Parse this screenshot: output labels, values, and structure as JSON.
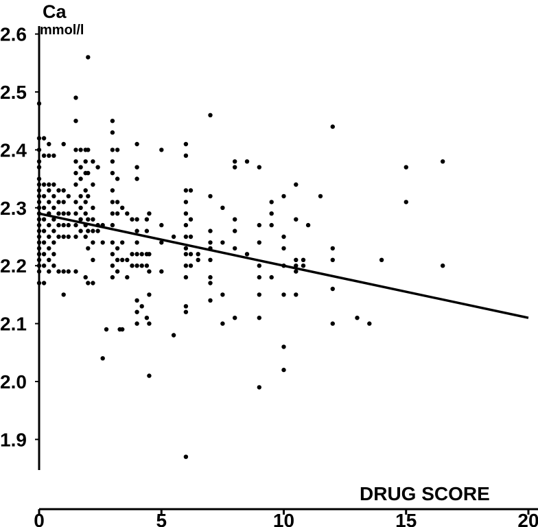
{
  "chart_data": {
    "type": "scatter",
    "title": "",
    "xlabel": "DRUG SCORE",
    "ylabel": "Ca",
    "ylabel_unit": "mmol/l",
    "xlim": [
      0,
      20
    ],
    "ylim": [
      1.86,
      2.6
    ],
    "x_ticks": [
      "0",
      "5",
      "10",
      "15",
      "20"
    ],
    "y_ticks": [
      "1.9",
      "2.0",
      "2.1",
      "2.2",
      "2.3",
      "2.4",
      "2.5",
      "2.6"
    ],
    "grid": false,
    "regression_line": {
      "x": [
        0,
        20
      ],
      "y": [
        2.29,
        2.11
      ]
    },
    "points": [
      [
        0,
        2.48
      ],
      [
        0,
        2.42
      ],
      [
        0,
        2.4
      ],
      [
        0,
        2.38
      ],
      [
        0,
        2.37
      ],
      [
        0,
        2.35
      ],
      [
        0,
        2.34
      ],
      [
        0,
        2.33
      ],
      [
        0,
        2.32
      ],
      [
        0,
        2.31
      ],
      [
        0,
        2.3
      ],
      [
        0,
        2.29
      ],
      [
        0,
        2.28
      ],
      [
        0,
        2.27
      ],
      [
        0,
        2.26
      ],
      [
        0,
        2.25
      ],
      [
        0,
        2.24
      ],
      [
        0,
        2.23
      ],
      [
        0,
        2.22
      ],
      [
        0,
        2.21
      ],
      [
        0,
        2.2
      ],
      [
        0,
        2.19
      ],
      [
        0,
        2.17
      ],
      [
        0.2,
        2.42
      ],
      [
        0.2,
        2.39
      ],
      [
        0.2,
        2.34
      ],
      [
        0.2,
        2.32
      ],
      [
        0.2,
        2.3
      ],
      [
        0.2,
        2.28
      ],
      [
        0.2,
        2.26
      ],
      [
        0.2,
        2.24
      ],
      [
        0.2,
        2.22
      ],
      [
        0.2,
        2.2
      ],
      [
        0.2,
        2.17
      ],
      [
        0.4,
        2.41
      ],
      [
        0.4,
        2.39
      ],
      [
        0.4,
        2.34
      ],
      [
        0.4,
        2.33
      ],
      [
        0.4,
        2.31
      ],
      [
        0.4,
        2.29
      ],
      [
        0.4,
        2.27
      ],
      [
        0.4,
        2.25
      ],
      [
        0.4,
        2.23
      ],
      [
        0.4,
        2.21
      ],
      [
        0.4,
        2.19
      ],
      [
        0.6,
        2.39
      ],
      [
        0.6,
        2.34
      ],
      [
        0.6,
        2.32
      ],
      [
        0.6,
        2.3
      ],
      [
        0.6,
        2.28
      ],
      [
        0.6,
        2.26
      ],
      [
        0.6,
        2.24
      ],
      [
        0.6,
        2.22
      ],
      [
        0.6,
        2.2
      ],
      [
        0.8,
        2.33
      ],
      [
        0.8,
        2.31
      ],
      [
        0.8,
        2.29
      ],
      [
        0.8,
        2.27
      ],
      [
        0.8,
        2.25
      ],
      [
        0.8,
        2.19
      ],
      [
        1.0,
        2.41
      ],
      [
        1.0,
        2.33
      ],
      [
        1.0,
        2.31
      ],
      [
        1.0,
        2.29
      ],
      [
        1.0,
        2.27
      ],
      [
        1.0,
        2.25
      ],
      [
        1.0,
        2.19
      ],
      [
        1.0,
        2.15
      ],
      [
        1.2,
        2.32
      ],
      [
        1.2,
        2.29
      ],
      [
        1.2,
        2.27
      ],
      [
        1.2,
        2.25
      ],
      [
        1.2,
        2.19
      ],
      [
        1.5,
        2.49
      ],
      [
        1.5,
        2.45
      ],
      [
        1.5,
        2.4
      ],
      [
        1.5,
        2.38
      ],
      [
        1.5,
        2.36
      ],
      [
        1.5,
        2.34
      ],
      [
        1.5,
        2.31
      ],
      [
        1.5,
        2.29
      ],
      [
        1.5,
        2.27
      ],
      [
        1.5,
        2.25
      ],
      [
        1.5,
        2.19
      ],
      [
        1.7,
        2.4
      ],
      [
        1.7,
        2.37
      ],
      [
        1.7,
        2.35
      ],
      [
        1.7,
        2.32
      ],
      [
        1.7,
        2.3
      ],
      [
        1.7,
        2.28
      ],
      [
        1.7,
        2.26
      ],
      [
        1.9,
        2.4
      ],
      [
        1.9,
        2.38
      ],
      [
        1.9,
        2.36
      ],
      [
        1.9,
        2.33
      ],
      [
        1.9,
        2.31
      ],
      [
        1.9,
        2.29
      ],
      [
        1.9,
        2.27
      ],
      [
        1.9,
        2.25
      ],
      [
        1.9,
        2.18
      ],
      [
        2.0,
        2.56
      ],
      [
        2.0,
        2.4
      ],
      [
        2.0,
        2.36
      ],
      [
        2.0,
        2.32
      ],
      [
        2.0,
        2.28
      ],
      [
        2.0,
        2.26
      ],
      [
        2.0,
        2.23
      ],
      [
        2.0,
        2.17
      ],
      [
        2.2,
        2.38
      ],
      [
        2.2,
        2.34
      ],
      [
        2.2,
        2.3
      ],
      [
        2.2,
        2.28
      ],
      [
        2.2,
        2.26
      ],
      [
        2.2,
        2.24
      ],
      [
        2.2,
        2.21
      ],
      [
        2.2,
        2.17
      ],
      [
        2.4,
        2.37
      ],
      [
        2.4,
        2.27
      ],
      [
        2.4,
        2.26
      ],
      [
        2.6,
        2.27
      ],
      [
        2.6,
        2.24
      ],
      [
        2.6,
        2.04
      ],
      [
        3.0,
        2.45
      ],
      [
        3.0,
        2.43
      ],
      [
        3.0,
        2.4
      ],
      [
        3.0,
        2.38
      ],
      [
        3.0,
        2.36
      ],
      [
        3.0,
        2.33
      ],
      [
        3.0,
        2.31
      ],
      [
        3.0,
        2.29
      ],
      [
        3.0,
        2.27
      ],
      [
        3.0,
        2.24
      ],
      [
        3.0,
        2.22
      ],
      [
        3.0,
        2.2
      ],
      [
        3.0,
        2.18
      ],
      [
        3.2,
        2.4
      ],
      [
        3.2,
        2.35
      ],
      [
        3.2,
        2.31
      ],
      [
        3.2,
        2.29
      ],
      [
        3.2,
        2.23
      ],
      [
        3.2,
        2.21
      ],
      [
        3.2,
        2.19
      ],
      [
        3.4,
        2.3
      ],
      [
        3.4,
        2.24
      ],
      [
        3.4,
        2.21
      ],
      [
        3.4,
        2.09
      ],
      [
        3.6,
        2.29
      ],
      [
        3.6,
        2.21
      ],
      [
        3.6,
        2.18
      ],
      [
        2.75,
        2.09
      ],
      [
        3.3,
        2.09
      ],
      [
        3.8,
        2.28
      ],
      [
        3.8,
        2.22
      ],
      [
        3.8,
        2.2
      ],
      [
        4.0,
        2.41
      ],
      [
        4.0,
        2.37
      ],
      [
        4.0,
        2.35
      ],
      [
        4.0,
        2.28
      ],
      [
        4.0,
        2.26
      ],
      [
        4.0,
        2.24
      ],
      [
        4.0,
        2.22
      ],
      [
        4.0,
        2.2
      ],
      [
        4.0,
        2.14
      ],
      [
        4.0,
        2.12
      ],
      [
        4.0,
        2.1
      ],
      [
        4.2,
        2.22
      ],
      [
        4.2,
        2.2
      ],
      [
        4.2,
        2.13
      ],
      [
        4.4,
        2.28
      ],
      [
        4.4,
        2.26
      ],
      [
        4.4,
        2.22
      ],
      [
        4.4,
        2.2
      ],
      [
        4.4,
        2.11
      ],
      [
        4.5,
        2.29
      ],
      [
        4.5,
        2.22
      ],
      [
        4.5,
        2.19
      ],
      [
        4.5,
        2.15
      ],
      [
        4.5,
        2.1
      ],
      [
        4.5,
        2.01
      ],
      [
        5.0,
        2.4
      ],
      [
        5.0,
        2.27
      ],
      [
        5.0,
        2.24
      ],
      [
        5.0,
        2.19
      ],
      [
        5.5,
        2.25
      ],
      [
        5.5,
        2.08
      ],
      [
        6.0,
        2.41
      ],
      [
        6.0,
        2.39
      ],
      [
        6.0,
        2.33
      ],
      [
        6.0,
        2.31
      ],
      [
        6.0,
        2.29
      ],
      [
        6.0,
        2.27
      ],
      [
        6.0,
        2.25
      ],
      [
        6.0,
        2.23
      ],
      [
        6.0,
        2.22
      ],
      [
        6.0,
        2.2
      ],
      [
        6.0,
        2.18
      ],
      [
        6.0,
        2.13
      ],
      [
        6.0,
        2.12
      ],
      [
        6.0,
        1.87
      ],
      [
        6.2,
        2.33
      ],
      [
        6.2,
        2.28
      ],
      [
        6.2,
        2.25
      ],
      [
        6.2,
        2.22
      ],
      [
        6.2,
        2.2
      ],
      [
        6.5,
        2.22
      ],
      [
        6.5,
        2.21
      ],
      [
        7.0,
        2.46
      ],
      [
        7.0,
        2.32
      ],
      [
        7.0,
        2.26
      ],
      [
        7.0,
        2.24
      ],
      [
        7.0,
        2.23
      ],
      [
        7.0,
        2.21
      ],
      [
        7.0,
        2.18
      ],
      [
        7.0,
        2.17
      ],
      [
        7.0,
        2.14
      ],
      [
        7.5,
        2.3
      ],
      [
        7.5,
        2.24
      ],
      [
        7.5,
        2.15
      ],
      [
        7.5,
        2.1
      ],
      [
        8.0,
        2.38
      ],
      [
        8.0,
        2.37
      ],
      [
        8.0,
        2.28
      ],
      [
        8.0,
        2.26
      ],
      [
        8.0,
        2.23
      ],
      [
        8.0,
        2.11
      ],
      [
        8.5,
        2.38
      ],
      [
        8.5,
        2.22
      ],
      [
        9.0,
        2.37
      ],
      [
        9.0,
        2.27
      ],
      [
        9.0,
        2.24
      ],
      [
        9.0,
        2.2
      ],
      [
        9.0,
        2.18
      ],
      [
        9.0,
        2.15
      ],
      [
        9.0,
        2.11
      ],
      [
        9.0,
        1.99
      ],
      [
        9.5,
        2.31
      ],
      [
        9.5,
        2.29
      ],
      [
        9.5,
        2.27
      ],
      [
        9.5,
        2.18
      ],
      [
        10.0,
        2.32
      ],
      [
        10.0,
        2.25
      ],
      [
        10.0,
        2.23
      ],
      [
        10.0,
        2.2
      ],
      [
        10.0,
        2.15
      ],
      [
        10.0,
        2.06
      ],
      [
        10.0,
        2.02
      ],
      [
        10.5,
        2.34
      ],
      [
        10.5,
        2.28
      ],
      [
        10.5,
        2.21
      ],
      [
        10.5,
        2.2
      ],
      [
        10.5,
        2.19
      ],
      [
        10.5,
        2.15
      ],
      [
        10.8,
        2.21
      ],
      [
        10.8,
        2.2
      ],
      [
        11.0,
        2.27
      ],
      [
        11.5,
        2.32
      ],
      [
        12.0,
        2.44
      ],
      [
        12.0,
        2.23
      ],
      [
        12.0,
        2.21
      ],
      [
        12.0,
        2.16
      ],
      [
        12.0,
        2.1
      ],
      [
        13.0,
        2.11
      ],
      [
        13.5,
        2.1
      ],
      [
        14.0,
        2.21
      ],
      [
        15.0,
        2.37
      ],
      [
        15.0,
        2.31
      ],
      [
        16.5,
        2.38
      ],
      [
        16.5,
        2.2
      ]
    ]
  }
}
